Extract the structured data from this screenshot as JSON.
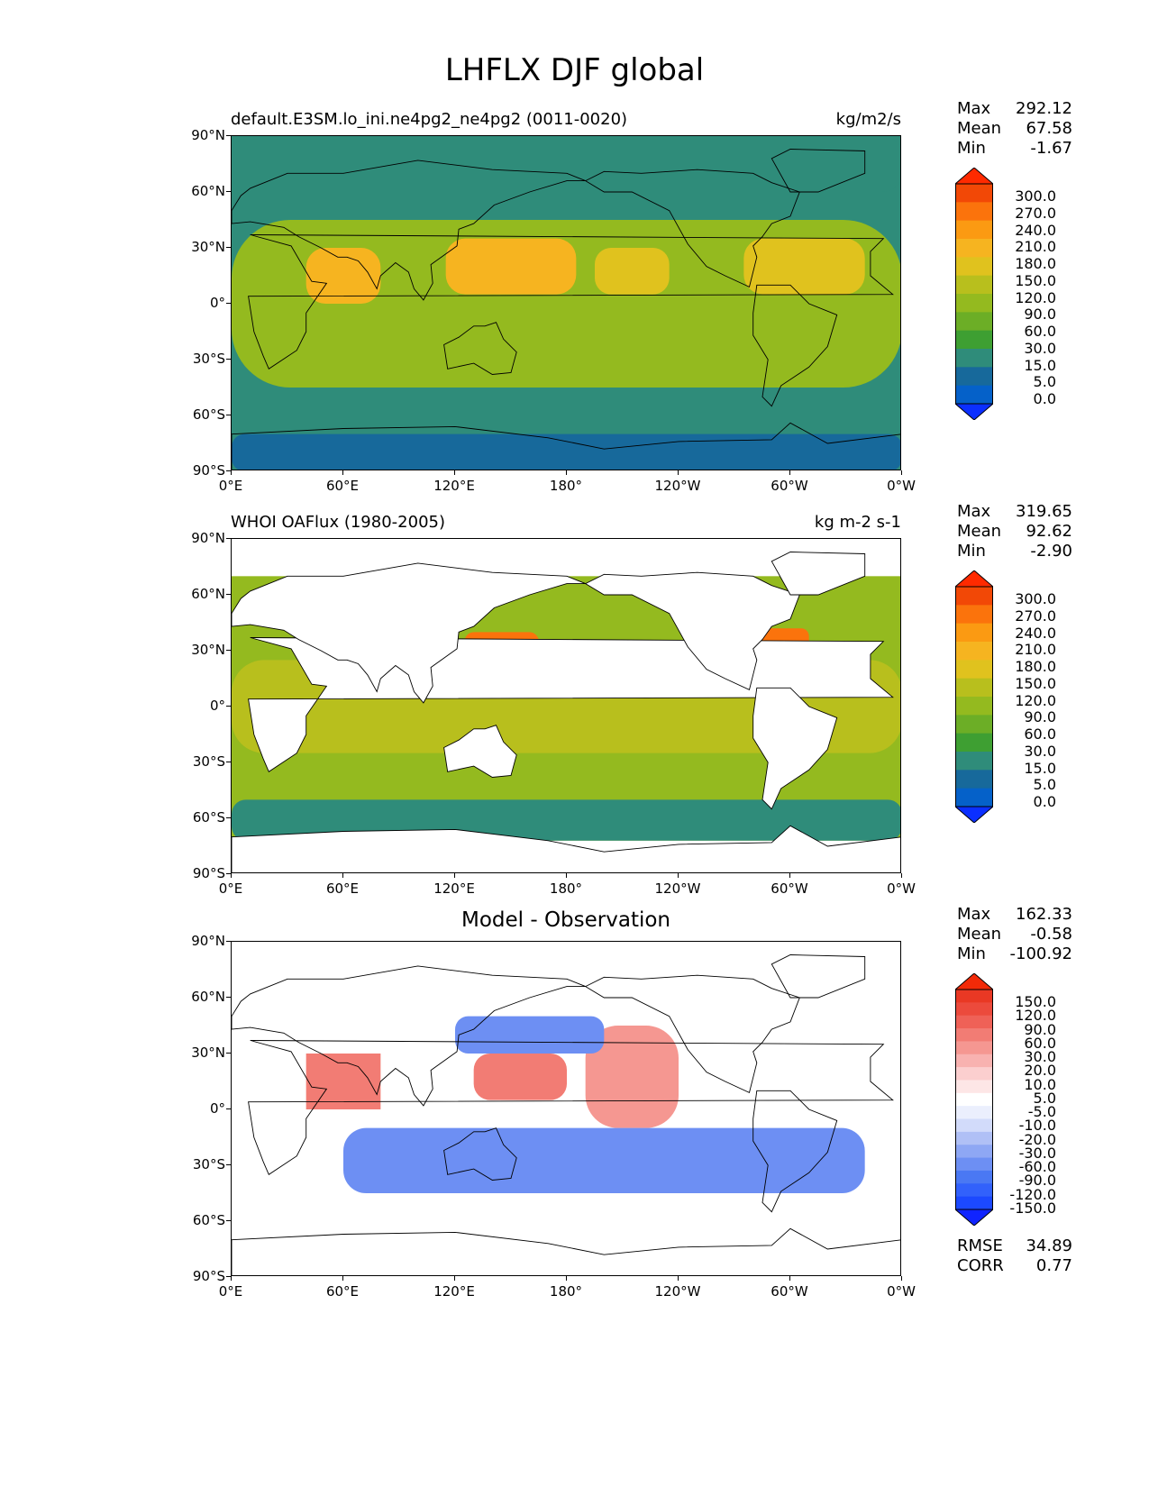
{
  "title": "LHFLX DJF global",
  "x_ticks": [
    "0°E",
    "60°E",
    "120°E",
    "180°",
    "120°W",
    "60°W",
    "0°W"
  ],
  "y_ticks": [
    "90°N",
    "60°N",
    "30°N",
    "0°",
    "30°S",
    "60°S",
    "90°S"
  ],
  "colors": {
    "seq": [
      "#0b2fff",
      "#0561c9",
      "#17699b",
      "#2f8c7a",
      "#3e9f32",
      "#6cae26",
      "#94ba1f",
      "#b8bf1d",
      "#e0c21e",
      "#f6b420",
      "#fb9a12",
      "#fb730c",
      "#f24806",
      "#ff2a00"
    ],
    "div": [
      "#1024ff",
      "#1c49ff",
      "#3261fb",
      "#4a78f3",
      "#6d8ff3",
      "#8ea7f4",
      "#b0c0f6",
      "#d2dbfa",
      "#ebeffd",
      "#ffffff",
      "#fde6e6",
      "#fbcfcf",
      "#f8b2b0",
      "#f59791",
      "#f27c74",
      "#ef6157",
      "#ec4a3c",
      "#e93824",
      "#f22a08"
    ]
  },
  "panels": [
    {
      "id": "model",
      "left_title": "default.E3SM.lo_ini.ne4pg2_ne4pg2 (0011-0020)",
      "center_title": "",
      "units": "kg/m2/s",
      "stats": [
        {
          "k": "Max",
          "v": "292.12"
        },
        {
          "k": "Mean",
          "v": "67.58"
        },
        {
          "k": "Min",
          "v": "-1.67"
        }
      ],
      "cbar_labels": [
        "300.0",
        "270.0",
        "240.0",
        "210.0",
        "180.0",
        "150.0",
        "120.0",
        "90.0",
        "60.0",
        "30.0",
        "15.0",
        "5.0",
        "0.0"
      ],
      "extra_stats": []
    },
    {
      "id": "obs",
      "left_title": "WHOI OAFlux (1980-2005)",
      "center_title": "",
      "units": "kg m-2 s-1",
      "stats": [
        {
          "k": "Max",
          "v": "319.65"
        },
        {
          "k": "Mean",
          "v": "92.62"
        },
        {
          "k": "Min",
          "v": "-2.90"
        }
      ],
      "cbar_labels": [
        "300.0",
        "270.0",
        "240.0",
        "210.0",
        "180.0",
        "150.0",
        "120.0",
        "90.0",
        "60.0",
        "30.0",
        "15.0",
        "5.0",
        "0.0"
      ],
      "extra_stats": []
    },
    {
      "id": "diff",
      "left_title": "",
      "center_title": "Model - Observation",
      "units": "",
      "stats": [
        {
          "k": "Max",
          "v": "162.33"
        },
        {
          "k": "Mean",
          "v": "-0.58"
        },
        {
          "k": "Min",
          "v": "-100.92"
        }
      ],
      "cbar_labels": [
        "150.0",
        "120.0",
        "90.0",
        "60.0",
        "30.0",
        "20.0",
        "10.0",
        "5.0",
        "-5.0",
        "-10.0",
        "-20.0",
        "-30.0",
        "-60.0",
        "-90.0",
        "-120.0",
        "-150.0"
      ],
      "extra_stats": [
        {
          "k": "RMSE",
          "v": "34.89"
        },
        {
          "k": "CORR",
          "v": "0.77"
        }
      ]
    }
  ],
  "chart_data": [
    {
      "type": "heatmap",
      "title": "default.E3SM.lo_ini.ne4pg2_ne4pg2 (0011-0020)",
      "units": "kg/m2/s",
      "xlim": [
        0,
        360
      ],
      "ylim": [
        -90,
        90
      ],
      "levels": [
        0,
        5,
        15,
        30,
        60,
        90,
        120,
        150,
        180,
        210,
        240,
        270,
        300
      ],
      "stats": {
        "max": 292.12,
        "mean": 67.58,
        "min": -1.67
      },
      "regions": [
        {
          "lon": [
            0,
            360
          ],
          "lat": [
            -90,
            90
          ],
          "value": 25
        },
        {
          "lon": [
            0,
            360
          ],
          "lat": [
            -45,
            45
          ],
          "value": 110
        },
        {
          "lon": [
            40,
            80
          ],
          "lat": [
            0,
            30
          ],
          "value": 200
        },
        {
          "lon": [
            115,
            185
          ],
          "lat": [
            5,
            35
          ],
          "value": 190
        },
        {
          "lon": [
            195,
            235
          ],
          "lat": [
            5,
            30
          ],
          "value": 175
        },
        {
          "lon": [
            275,
            340
          ],
          "lat": [
            5,
            35
          ],
          "value": 170
        },
        {
          "lon": [
            0,
            360
          ],
          "lat": [
            -90,
            -70
          ],
          "value": 5
        },
        {
          "lon": [
            0,
            360
          ],
          "lat": [
            60,
            90
          ],
          "value": 15
        }
      ]
    },
    {
      "type": "heatmap",
      "title": "WHOI OAFlux (1980-2005)",
      "units": "kg m-2 s-1",
      "xlim": [
        0,
        360
      ],
      "ylim": [
        -90,
        90
      ],
      "levels": [
        0,
        5,
        15,
        30,
        60,
        90,
        120,
        150,
        180,
        210,
        240,
        270,
        300
      ],
      "stats": {
        "max": 319.65,
        "mean": 92.62,
        "min": -2.9
      },
      "regions": [
        {
          "lon": [
            0,
            360
          ],
          "lat": [
            -72,
            70
          ],
          "value": 90
        },
        {
          "lon": [
            0,
            360
          ],
          "lat": [
            -25,
            25
          ],
          "value": 120
        },
        {
          "lon": [
            125,
            165
          ],
          "lat": [
            25,
            40
          ],
          "value": 250
        },
        {
          "lon": [
            280,
            310
          ],
          "lat": [
            30,
            42
          ],
          "value": 260
        },
        {
          "lon": [
            0,
            360
          ],
          "lat": [
            -72,
            -50
          ],
          "value": 25
        }
      ]
    },
    {
      "type": "heatmap",
      "title": "Model - Observation",
      "xlim": [
        0,
        360
      ],
      "ylim": [
        -90,
        90
      ],
      "levels": [
        -150,
        -120,
        -90,
        -60,
        -30,
        -20,
        -10,
        -5,
        5,
        10,
        20,
        30,
        60,
        90,
        120,
        150
      ],
      "stats": {
        "max": 162.33,
        "mean": -0.58,
        "min": -100.92,
        "rmse": 34.89,
        "corr": 0.77
      },
      "regions": [
        {
          "lon": [
            40,
            80
          ],
          "lat": [
            0,
            30
          ],
          "value": 70
        },
        {
          "lon": [
            130,
            180
          ],
          "lat": [
            5,
            30
          ],
          "value": 60
        },
        {
          "lon": [
            190,
            240
          ],
          "lat": [
            -10,
            45
          ],
          "value": 40
        },
        {
          "lon": [
            60,
            340
          ],
          "lat": [
            -45,
            -10
          ],
          "value": -35
        },
        {
          "lon": [
            120,
            200
          ],
          "lat": [
            30,
            50
          ],
          "value": -40
        }
      ]
    }
  ]
}
